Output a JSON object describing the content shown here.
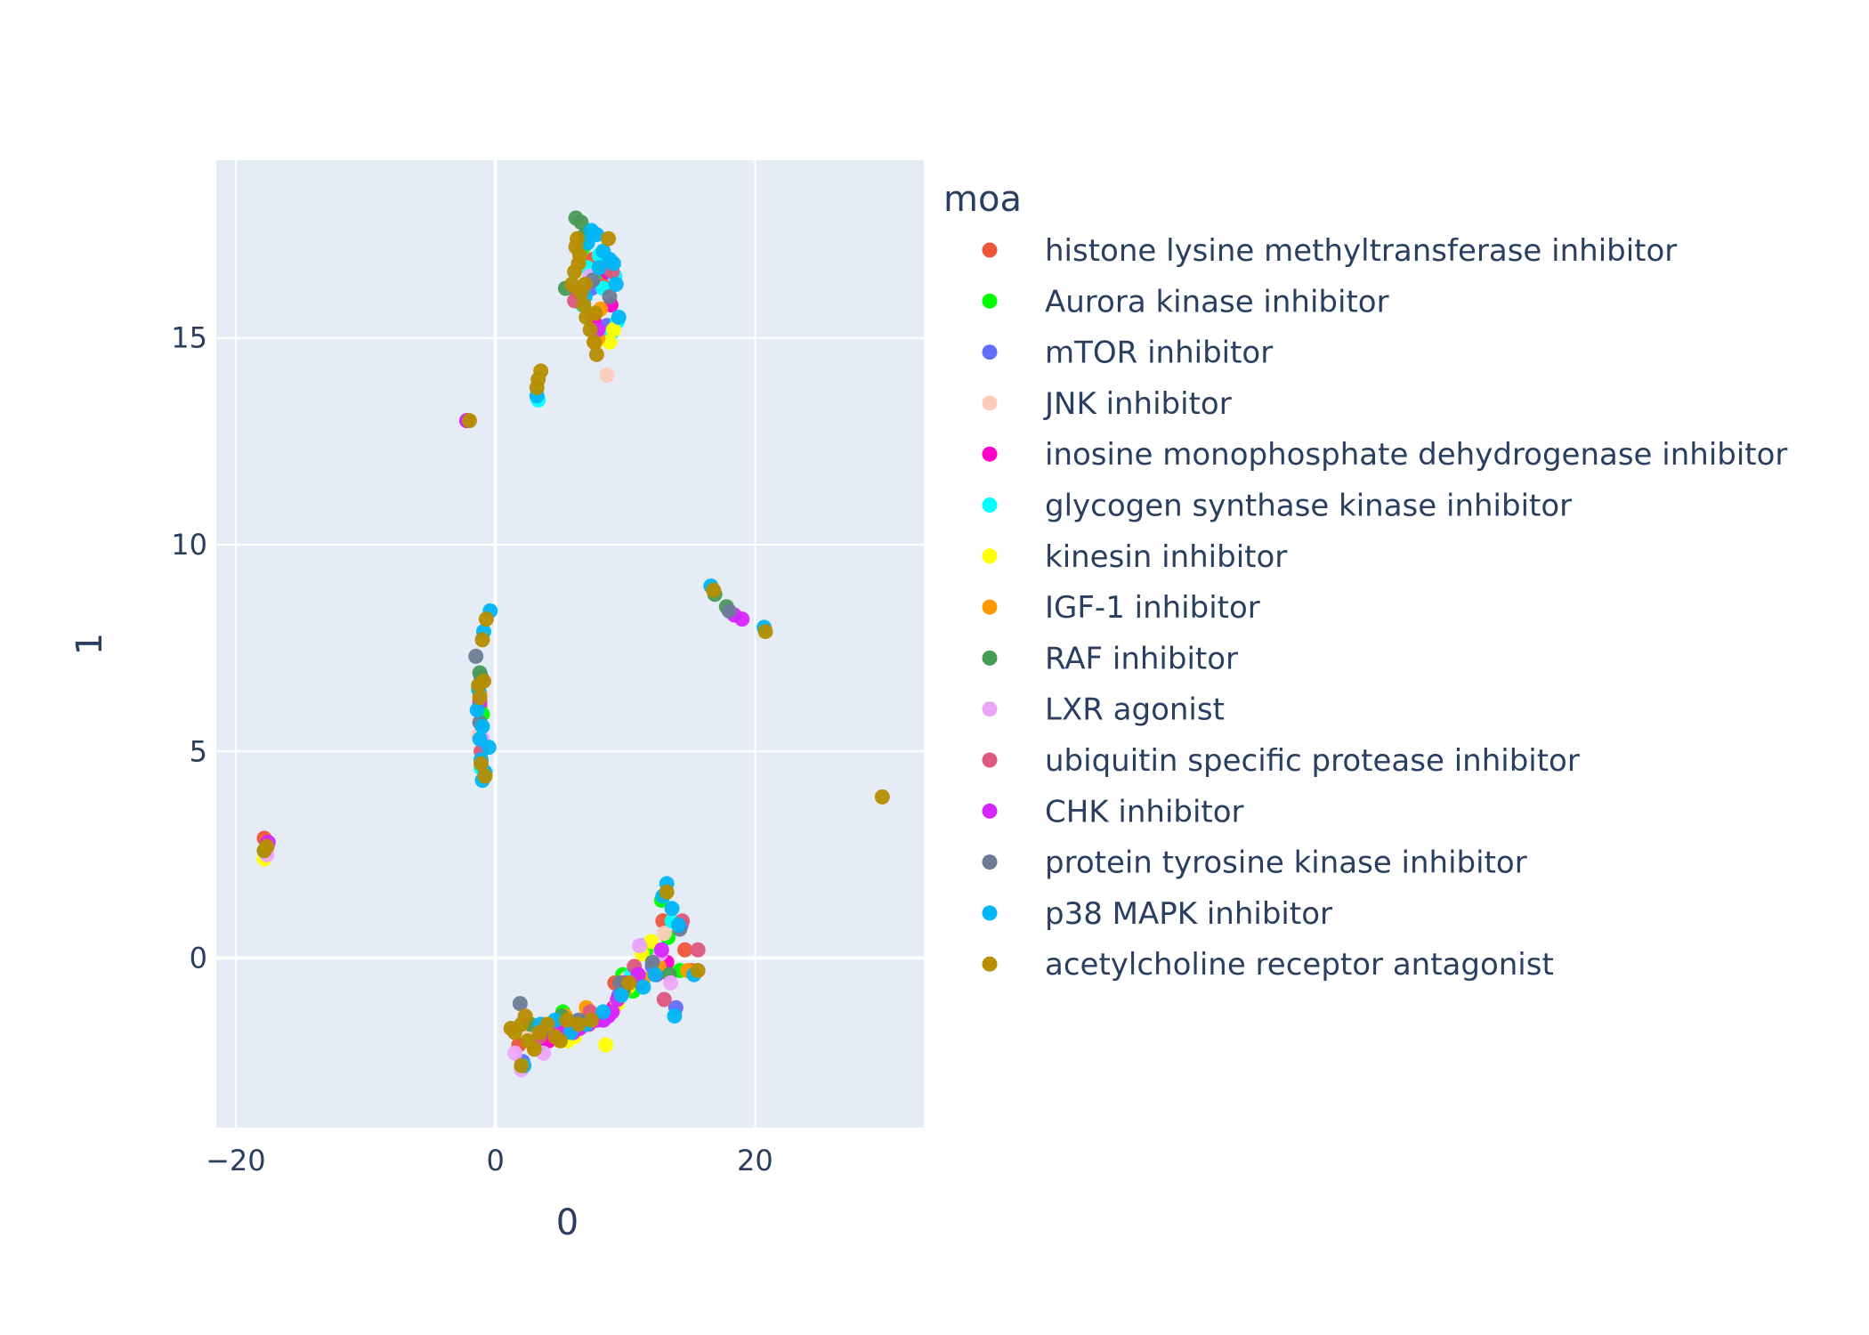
{
  "chart_data": {
    "type": "scatter",
    "title": "",
    "xlabel": "0",
    "ylabel": "1",
    "xlim": [
      -21.5,
      33
    ],
    "ylim": [
      -4.1,
      19.3
    ],
    "x_ticks": [
      -20,
      0,
      20
    ],
    "y_ticks": [
      0,
      5,
      10,
      15
    ],
    "x_tick_labels": [
      "−20",
      "0",
      "20"
    ],
    "y_tick_labels": [
      "0",
      "5",
      "10",
      "15"
    ],
    "grid": true,
    "plot_background": "#e5ecf6",
    "grid_color": "#ffffff",
    "legend": {
      "title": "moa",
      "placement": "right"
    },
    "series": [
      {
        "name": "histone lysine methyltransferase inhibitor",
        "color": "#EF553B",
        "points": [
          [
            -17.8,
            2.9
          ],
          [
            -17.6,
            2.7
          ],
          [
            8.2,
            16.3
          ],
          [
            7.5,
            16.9
          ],
          [
            14.6,
            0.2
          ],
          [
            15.1,
            -0.3
          ],
          [
            9.2,
            -0.6
          ],
          [
            1.8,
            -2.1
          ],
          [
            12.9,
            0.9
          ],
          [
            4.8,
            -1.6
          ],
          [
            6.3,
            16.1
          ],
          [
            -1.2,
            6.1
          ]
        ]
      },
      {
        "name": "Aurora kinase inhibitor",
        "color": "#00FF00",
        "points": [
          [
            12.8,
            1.4
          ],
          [
            9.8,
            -0.4
          ],
          [
            14.2,
            -0.3
          ],
          [
            5.2,
            -1.3
          ],
          [
            11.6,
            0.2
          ],
          [
            6.8,
            17.2
          ],
          [
            7.9,
            16.6
          ],
          [
            2.9,
            -1.9
          ],
          [
            13.3,
            0.5
          ],
          [
            10.6,
            -0.8
          ],
          [
            -1.0,
            5.9
          ]
        ]
      },
      {
        "name": "mTOR inhibitor",
        "color": "#636EFA",
        "points": [
          [
            11.2,
            0.3
          ],
          [
            13.9,
            -1.2
          ],
          [
            3.4,
            -2.1
          ],
          [
            7.4,
            16.2
          ],
          [
            8.6,
            15.3
          ],
          [
            -1.1,
            6.8
          ],
          [
            2.1,
            -2.5
          ],
          [
            12.1,
            -0.2
          ],
          [
            6.2,
            -1.6
          ],
          [
            9.5,
            -0.9
          ],
          [
            14.3,
            0.8
          ]
        ]
      },
      {
        "name": "JNK inhibitor",
        "color": "#FECBBB",
        "points": [
          [
            8.6,
            14.1
          ],
          [
            7.8,
            15.2
          ],
          [
            2.6,
            -1.7
          ],
          [
            10.1,
            -0.5
          ],
          [
            13.0,
            0.6
          ],
          [
            -1.3,
            5.4
          ],
          [
            4.4,
            -1.9
          ]
        ]
      },
      {
        "name": "inosine monophosphate dehydrogenase inhibitor",
        "color": "#FF00CC",
        "points": [
          [
            -2.2,
            13.0
          ],
          [
            8.9,
            15.8
          ],
          [
            7.6,
            15.4
          ],
          [
            11.2,
            -0.6
          ],
          [
            13.2,
            -0.1
          ],
          [
            6.3,
            -1.7
          ],
          [
            9.1,
            -1.2
          ],
          [
            4.1,
            -2.0
          ],
          [
            8.6,
            16.6
          ],
          [
            12.4,
            -0.4
          ],
          [
            7.0,
            -1.5
          ]
        ]
      },
      {
        "name": "glycogen synthase kinase inhibitor",
        "color": "#00FFFF",
        "points": [
          [
            9.2,
            16.5
          ],
          [
            8.0,
            17.0
          ],
          [
            8.9,
            15.1
          ],
          [
            9.4,
            15.4
          ],
          [
            7.1,
            16.7
          ],
          [
            3.3,
            13.5
          ],
          [
            8.3,
            16.2
          ],
          [
            13.6,
            0.9
          ],
          [
            10.5,
            -0.4
          ],
          [
            -1.1,
            4.6
          ],
          [
            6.7,
            15.8
          ]
        ]
      },
      {
        "name": "kinesin inhibitor",
        "color": "#FFFF00",
        "points": [
          [
            9.1,
            15.2
          ],
          [
            8.8,
            14.9
          ],
          [
            -17.8,
            2.4
          ],
          [
            8.5,
            -2.1
          ],
          [
            11.3,
            0.1
          ],
          [
            10.2,
            -0.7
          ],
          [
            6.1,
            -1.9
          ],
          [
            12.0,
            0.4
          ],
          [
            4.9,
            -1.8
          ],
          [
            7.6,
            -1.4
          ],
          [
            9.4,
            -1.1
          ],
          [
            5.6,
            -2.0
          ]
        ]
      },
      {
        "name": "IGF-1 inhibitor",
        "color": "#FF9900",
        "points": [
          [
            7.7,
            14.9
          ],
          [
            7.9,
            15.0
          ],
          [
            8.1,
            15.7
          ],
          [
            7.0,
            -1.2
          ],
          [
            9.9,
            -0.8
          ],
          [
            12.6,
            -0.2
          ],
          [
            14.8,
            -0.3
          ],
          [
            5.4,
            -1.4
          ],
          [
            -1.2,
            6.4
          ],
          [
            3.0,
            -2.2
          ],
          [
            11.4,
            -0.5
          ]
        ]
      },
      {
        "name": "RAF inhibitor",
        "color": "#479B55",
        "points": [
          [
            6.2,
            17.9
          ],
          [
            6.6,
            17.8
          ],
          [
            5.4,
            16.2
          ],
          [
            6.9,
            17.5
          ],
          [
            16.9,
            8.8
          ],
          [
            17.8,
            8.5
          ],
          [
            -1.2,
            6.9
          ],
          [
            13.4,
            -0.4
          ],
          [
            5.1,
            -1.4
          ],
          [
            2.7,
            -1.6
          ],
          [
            9.8,
            -0.8
          ]
        ]
      },
      {
        "name": "LXR agonist",
        "color": "#EEA6FB",
        "points": [
          [
            2.0,
            -2.7
          ],
          [
            1.5,
            -2.3
          ],
          [
            3.7,
            -2.3
          ],
          [
            -17.6,
            2.5
          ],
          [
            11.1,
            0.3
          ],
          [
            8.4,
            -1.5
          ],
          [
            5.8,
            -1.6
          ],
          [
            12.7,
            0.1
          ],
          [
            13.5,
            -0.6
          ],
          [
            -1.0,
            5.3
          ],
          [
            7.3,
            16.5
          ]
        ]
      },
      {
        "name": "ubiquitin specific protease inhibitor",
        "color": "#DC587D",
        "points": [
          [
            15.6,
            0.2
          ],
          [
            14.4,
            0.9
          ],
          [
            13.0,
            -1.0
          ],
          [
            8.6,
            16.7
          ],
          [
            9.0,
            16.6
          ],
          [
            7.3,
            -1.3
          ],
          [
            10.7,
            -0.2
          ],
          [
            3.4,
            -1.9
          ],
          [
            -1.1,
            5.0
          ],
          [
            6.1,
            15.9
          ]
        ]
      },
      {
        "name": "CHK inhibitor",
        "color": "#D626FF",
        "points": [
          [
            19.0,
            8.2
          ],
          [
            18.4,
            8.3
          ],
          [
            -17.5,
            2.8
          ],
          [
            -2.2,
            13.0
          ],
          [
            6.5,
            -1.7
          ],
          [
            7.2,
            -1.6
          ],
          [
            7.8,
            -1.5
          ],
          [
            8.3,
            -1.5
          ],
          [
            9.0,
            -1.3
          ],
          [
            6.0,
            -1.8
          ],
          [
            5.3,
            -1.7
          ],
          [
            8.7,
            -1.4
          ],
          [
            9.4,
            -1.0
          ],
          [
            10.0,
            -0.6
          ],
          [
            12.8,
            0.2
          ],
          [
            4.8,
            -1.8
          ],
          [
            11.0,
            -0.4
          ],
          [
            -1.2,
            6.2
          ],
          [
            7.9,
            15.2
          ]
        ]
      },
      {
        "name": "protein tyrosine kinase inhibitor",
        "color": "#6C7C96",
        "points": [
          [
            18.0,
            8.4
          ],
          [
            -1.5,
            7.3
          ],
          [
            1.9,
            -1.1
          ],
          [
            9.6,
            -0.6
          ],
          [
            14.2,
            0.7
          ],
          [
            3.7,
            -1.7
          ],
          [
            6.4,
            -1.5
          ],
          [
            12.1,
            -0.1
          ],
          [
            -1.2,
            5.7
          ],
          [
            7.5,
            16.4
          ],
          [
            8.8,
            16.0
          ]
        ]
      },
      {
        "name": "p38 MAPK inhibitor",
        "color": "#00B5F7",
        "points": [
          [
            16.6,
            9.0
          ],
          [
            20.7,
            8.0
          ],
          [
            -0.4,
            8.4
          ],
          [
            -0.9,
            7.9
          ],
          [
            -1.3,
            6.5
          ],
          [
            -1.4,
            6.0
          ],
          [
            -1.0,
            5.6
          ],
          [
            -0.5,
            5.1
          ],
          [
            -1.1,
            4.8
          ],
          [
            -1.0,
            4.3
          ],
          [
            -0.8,
            4.5
          ],
          [
            -1.2,
            5.3
          ],
          [
            13.2,
            1.8
          ],
          [
            12.9,
            1.5
          ],
          [
            13.6,
            1.2
          ],
          [
            14.1,
            0.8
          ],
          [
            13.8,
            -1.4
          ],
          [
            12.3,
            -0.4
          ],
          [
            11.4,
            -0.7
          ],
          [
            9.7,
            -0.9
          ],
          [
            8.3,
            -1.3
          ],
          [
            7.0,
            -1.6
          ],
          [
            5.8,
            -1.8
          ],
          [
            4.6,
            -1.5
          ],
          [
            3.5,
            -1.6
          ],
          [
            2.2,
            -2.6
          ],
          [
            15.3,
            -0.4
          ],
          [
            7.8,
            17.5
          ],
          [
            8.8,
            16.9
          ],
          [
            9.3,
            16.3
          ],
          [
            9.5,
            15.5
          ],
          [
            9.1,
            16.8
          ],
          [
            6.9,
            16.0
          ],
          [
            8.3,
            17.1
          ],
          [
            7.4,
            17.6
          ],
          [
            3.2,
            13.6
          ],
          [
            -17.8,
            2.6
          ],
          [
            8.0,
            16.7
          ],
          [
            7.1,
            17.3
          ]
        ]
      },
      {
        "name": "acetylcholine receptor antagonist",
        "color": "#B68E00",
        "points": [
          [
            6.3,
            17.4
          ],
          [
            6.5,
            17.0
          ],
          [
            6.1,
            16.6
          ],
          [
            5.9,
            16.3
          ],
          [
            6.6,
            16.1
          ],
          [
            6.8,
            15.8
          ],
          [
            7.0,
            15.5
          ],
          [
            7.3,
            15.2
          ],
          [
            7.6,
            14.9
          ],
          [
            7.8,
            14.6
          ],
          [
            6.4,
            16.8
          ],
          [
            6.2,
            17.2
          ],
          [
            8.7,
            17.4
          ],
          [
            3.2,
            13.8
          ],
          [
            3.5,
            14.2
          ],
          [
            3.3,
            14.0
          ],
          [
            -2.0,
            13.0
          ],
          [
            29.8,
            3.9
          ],
          [
            20.8,
            7.9
          ],
          [
            16.8,
            8.9
          ],
          [
            -0.7,
            8.2
          ],
          [
            -1.0,
            7.7
          ],
          [
            -1.3,
            6.6
          ],
          [
            -0.9,
            6.7
          ],
          [
            -1.2,
            6.3
          ],
          [
            -1.1,
            4.7
          ],
          [
            -0.8,
            4.4
          ],
          [
            -17.8,
            2.6
          ],
          [
            -17.6,
            2.7
          ],
          [
            1.5,
            -1.8
          ],
          [
            2.0,
            -1.6
          ],
          [
            2.5,
            -2.0
          ],
          [
            3.0,
            -2.2
          ],
          [
            2.0,
            -2.6
          ],
          [
            3.4,
            -1.8
          ],
          [
            4.0,
            -1.6
          ],
          [
            4.6,
            -1.9
          ],
          [
            5.5,
            -1.5
          ],
          [
            6.4,
            -1.6
          ],
          [
            7.4,
            -1.5
          ],
          [
            10.3,
            -0.6
          ],
          [
            13.2,
            1.6
          ],
          [
            15.6,
            -0.3
          ],
          [
            5.0,
            -2.0
          ],
          [
            1.2,
            -1.7
          ],
          [
            2.3,
            -1.4
          ],
          [
            6.9,
            16.3
          ],
          [
            7.7,
            15.6
          ]
        ]
      }
    ]
  }
}
